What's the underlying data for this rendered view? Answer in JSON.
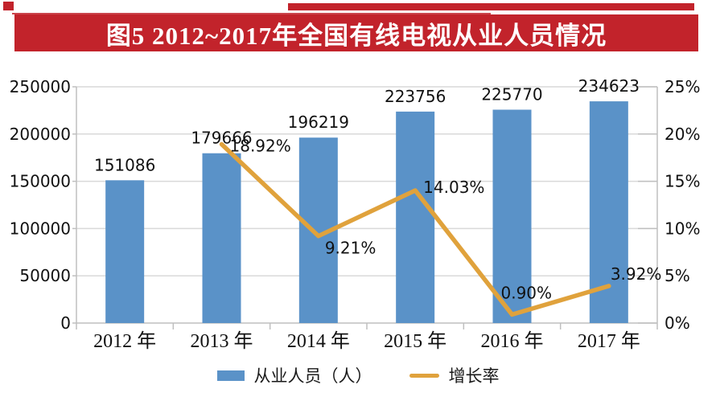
{
  "title": {
    "text": "图5 2012~2017年全国有线电视从业人员情况"
  },
  "colors": {
    "title_bg": "#c2232b",
    "title_text": "#ffffff",
    "bar": "#5a92c8",
    "line": "#e0a23c",
    "grid": "#d9d9d9",
    "axis": "#bfbfbf",
    "label": "#111111"
  },
  "legend": {
    "items": [
      {
        "label": "从业人员（人）",
        "swatch": "bar"
      },
      {
        "label": "增长率",
        "swatch": "line"
      }
    ]
  },
  "chart_data": {
    "type": "bar+line",
    "title": "图5 2012~2017年全国有线电视从业人员情况",
    "categories": [
      "2012 年",
      "2013 年",
      "2014 年",
      "2015 年",
      "2016 年",
      "2017 年"
    ],
    "series": [
      {
        "name": "从业人员（人）",
        "type": "bar",
        "axis": "left",
        "values": [
          151086,
          179666,
          196219,
          223756,
          225770,
          234623
        ],
        "data_labels": [
          "151086",
          "179666",
          "196219",
          "223756",
          "225770",
          "234623"
        ]
      },
      {
        "name": "增长率",
        "type": "line",
        "axis": "right",
        "start_category_index": 1,
        "values_percent": [
          18.92,
          9.21,
          14.03,
          0.9,
          3.92
        ],
        "data_labels": [
          "18.92%",
          "9.21%",
          "14.03%",
          "0.90%",
          "3.92%"
        ]
      }
    ],
    "y_axis_left": {
      "min": 0,
      "max": 250000,
      "tick_labels": [
        "0",
        "50000",
        "100000",
        "150000",
        "200000",
        "250000"
      ]
    },
    "y_axis_right": {
      "min": 0,
      "max": 25,
      "tick_labels": [
        "0%",
        "5%",
        "10%",
        "15%",
        "20%",
        "25%"
      ]
    },
    "grid": true,
    "legend_position": "bottom"
  }
}
